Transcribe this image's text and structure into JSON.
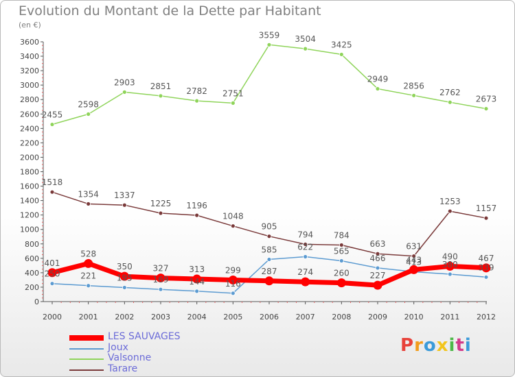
{
  "title": "Evolution du Montant de la Dette par Habitant",
  "subtitle": "(en €)",
  "logo": {
    "text": "Proxiti",
    "colors": [
      "#e8423a",
      "#f29c1c",
      "#3a9ad9",
      "#f2c51c",
      "#4cb848",
      "#d23a8a",
      "#3a9ad9"
    ]
  },
  "chart_data": {
    "type": "line",
    "title": "Evolution du Montant de la Dette par Habitant",
    "subtitle": "(en €)",
    "xlabel": "",
    "ylabel": "",
    "x": [
      2000,
      2001,
      2002,
      2003,
      2004,
      2005,
      2006,
      2007,
      2008,
      2009,
      2010,
      2011,
      2012
    ],
    "ylim": [
      0,
      3600
    ],
    "yticks": [
      0,
      200,
      400,
      600,
      800,
      1000,
      1200,
      1400,
      1600,
      1800,
      2000,
      2200,
      2400,
      2600,
      2800,
      3000,
      3200,
      3400,
      3600
    ],
    "grid": false,
    "legend_position": "bottom-left",
    "series": [
      {
        "name": "Joux",
        "color": "#5c9bd1",
        "width": 1.5,
        "values": [
          250,
          221,
          195,
          169,
          144,
          116,
          585,
          622,
          565,
          466,
          413,
          380,
          339
        ],
        "labels": [
          "250",
          "221",
          "195",
          "169",
          "144",
          "116",
          "585",
          "622",
          "565",
          "466",
          "413",
          "380",
          "339"
        ]
      },
      {
        "name": "Valsonne",
        "color": "#8fd45a",
        "width": 1.5,
        "values": [
          2455,
          2598,
          2903,
          2851,
          2782,
          2751,
          3559,
          3504,
          3425,
          2949,
          2856,
          2762,
          2673
        ],
        "labels": [
          "2455",
          "2598",
          "2903",
          "2851",
          "2782",
          "2751",
          "3559",
          "3504",
          "3425",
          "2949",
          "2856",
          "2762",
          "2673"
        ]
      },
      {
        "name": "Tarare",
        "color": "#7a3a3a",
        "width": 1.5,
        "values": [
          1518,
          1354,
          1337,
          1225,
          1196,
          1048,
          905,
          794,
          784,
          663,
          631,
          1253,
          1157
        ],
        "labels": [
          "1518",
          "1354",
          "1337",
          "1225",
          "1196",
          "1048",
          "905",
          "794",
          "784",
          "663",
          "631",
          "1253",
          "1157"
        ]
      },
      {
        "name": "LES SAUVAGES",
        "color": "#ff0000",
        "width": 7,
        "values": [
          401,
          528,
          350,
          327,
          313,
          299,
          287,
          274,
          260,
          227,
          443,
          490,
          467
        ],
        "labels": [
          "401",
          "528",
          "350",
          "327",
          "313",
          "299",
          "287",
          "274",
          "260",
          "227",
          "443",
          "490",
          "467"
        ]
      }
    ],
    "legend_order": [
      "LES SAUVAGES",
      "Joux",
      "Valsonne",
      "Tarare"
    ]
  }
}
